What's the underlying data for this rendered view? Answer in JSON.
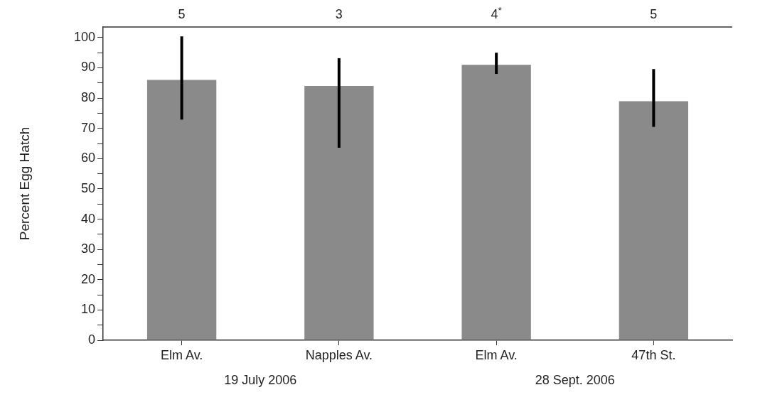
{
  "chart_data": {
    "type": "bar",
    "ylabel": "Percent Egg Hatch",
    "categories": [
      "Elm Av.",
      "Napples Av.",
      "Elm Av.",
      "47th St."
    ],
    "values": [
      86,
      84,
      91,
      79
    ],
    "errors": [
      [
        72.9,
        100.4
      ],
      [
        63.6,
        93.2
      ],
      [
        88,
        95
      ],
      [
        70.5,
        89.6
      ]
    ],
    "color": "#8a8a8a",
    "ylim": [
      0,
      103.5
    ],
    "yticks": [
      0,
      {
        "value": 5,
        "label": null
      },
      10,
      {
        "value": 15,
        "label": null
      },
      20,
      {
        "value": 25,
        "label": null
      },
      30,
      {
        "value": 35,
        "label": null
      },
      40,
      {
        "value": 45,
        "label": null
      },
      50,
      {
        "value": 55,
        "label": null
      },
      60,
      {
        "value": 65,
        "label": null
      },
      70,
      {
        "value": 75,
        "label": null
      },
      80,
      {
        "value": 85,
        "label": null
      },
      90,
      {
        "value": 95,
        "label": null
      },
      100
    ],
    "annotations": [
      "5",
      "3",
      "4$^{*}$",
      "5",
      "19 July 2006",
      "28 Sept. 2006"
    ]
  }
}
